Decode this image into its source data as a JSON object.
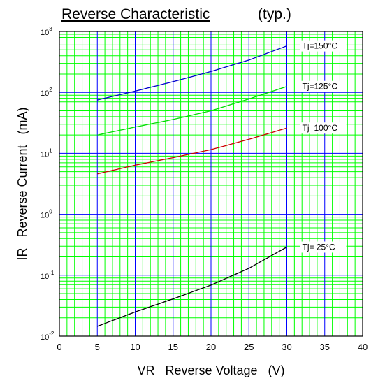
{
  "chart_data": {
    "type": "line",
    "title": "Reverse Characteristic",
    "subtitle": "(typ.)",
    "xlabel": "VR   Reverse Voltage   (V)",
    "ylabel": "IR   Reverse Current   (mA)",
    "xlim": [
      0,
      40
    ],
    "ylim": [
      0.01,
      1000
    ],
    "y_scale": "log",
    "grid": true,
    "x_ticks": [
      "0",
      "5",
      "10",
      "15",
      "20",
      "25",
      "30",
      "35",
      "40"
    ],
    "y_ticks": [
      {
        "base": "10",
        "exp": "-2"
      },
      {
        "base": "10",
        "exp": "-1"
      },
      {
        "base": "10",
        "exp": "0"
      },
      {
        "base": "10",
        "exp": "1"
      },
      {
        "base": "10",
        "exp": "2"
      },
      {
        "base": "10",
        "exp": "3"
      }
    ],
    "colors": {
      "grid_major_x": "#0000ff",
      "grid_major_y": "#0000ff",
      "grid_minor": "#00ff00",
      "axes": "#000000"
    },
    "series": [
      {
        "name": "Tj=150°C",
        "color": "#0000cc",
        "x": [
          5,
          10,
          15,
          20,
          25,
          30
        ],
        "y": [
          75,
          105,
          150,
          220,
          340,
          580
        ]
      },
      {
        "name": "Tj=125°C",
        "color": "#00dd00",
        "x": [
          5,
          10,
          15,
          20,
          25,
          30
        ],
        "y": [
          20,
          27,
          36,
          50,
          78,
          125
        ]
      },
      {
        "name": "Tj=100°C",
        "color": "#cc0000",
        "x": [
          5,
          10,
          15,
          20,
          25,
          30
        ],
        "y": [
          4.6,
          6.4,
          8.5,
          11.5,
          17,
          26
        ]
      },
      {
        "name": "Tj= 25°C",
        "color": "#000000",
        "x": [
          5,
          10,
          15,
          20,
          25,
          30
        ],
        "y": [
          0.0145,
          0.025,
          0.041,
          0.069,
          0.13,
          0.29
        ]
      }
    ],
    "annotations": [
      {
        "text": "Tj=150°C",
        "series": 0
      },
      {
        "text": "Tj=125°C",
        "series": 1
      },
      {
        "text": "Tj=100°C",
        "series": 2
      },
      {
        "text": "Tj= 25°C",
        "series": 3
      }
    ]
  }
}
